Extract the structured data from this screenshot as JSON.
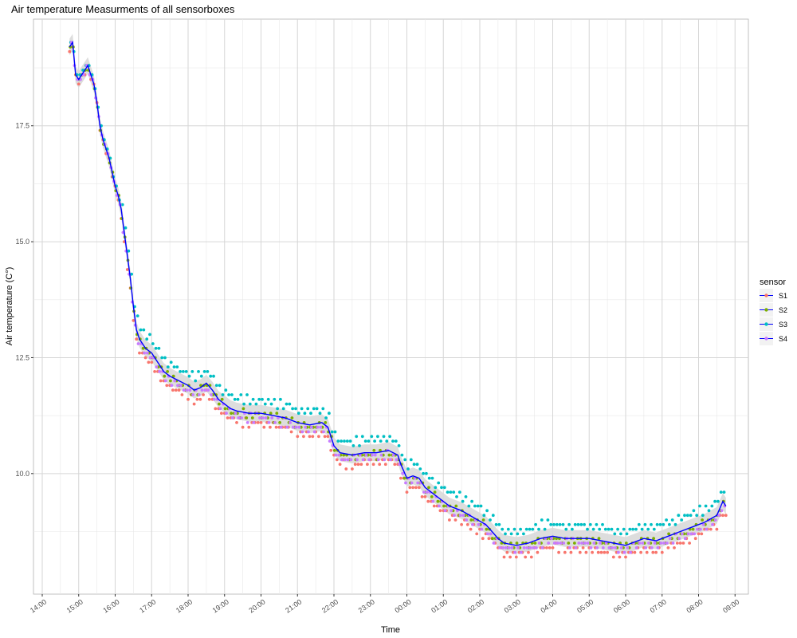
{
  "chart_data": {
    "type": "scatter",
    "title": "Air temperature Measurments of all sensorboxes",
    "xlabel": "Time",
    "ylabel": "Air temperature (C°)",
    "grid": true,
    "xlim": [
      "14:00",
      "09:00"
    ],
    "ylim": [
      7.4,
      19.8
    ],
    "x_ticks": [
      "14:00",
      "15:00",
      "16:00",
      "17:00",
      "18:00",
      "19:00",
      "20:00",
      "21:00",
      "22:00",
      "23:00",
      "00:00",
      "01:00",
      "02:00",
      "03:00",
      "04:00",
      "05:00",
      "06:00",
      "07:00",
      "08:00",
      "09:00"
    ],
    "y_ticks": [
      "10.0",
      "12.5",
      "15.0",
      "17.5"
    ],
    "legend": {
      "title": "sensor",
      "position": "right"
    },
    "series": [
      {
        "name": "S1",
        "color": "#F8766D"
      },
      {
        "name": "S2",
        "color": "#7CAE00"
      },
      {
        "name": "S3",
        "color": "#00BFC4"
      },
      {
        "name": "S4",
        "color": "#C77CFF"
      }
    ],
    "trend": {
      "color": "#0000FF",
      "band_color": "#D9D9D9",
      "points": [
        [
          "14:45",
          19.2
        ],
        [
          "14:50",
          19.3
        ],
        [
          "14:55",
          18.6
        ],
        [
          "15:00",
          18.5
        ],
        [
          "15:05",
          18.6
        ],
        [
          "15:10",
          18.7
        ],
        [
          "15:15",
          18.8
        ],
        [
          "15:20",
          18.6
        ],
        [
          "15:25",
          18.4
        ],
        [
          "15:30",
          18.0
        ],
        [
          "15:35",
          17.5
        ],
        [
          "15:40",
          17.2
        ],
        [
          "15:45",
          17.0
        ],
        [
          "15:50",
          16.8
        ],
        [
          "15:55",
          16.5
        ],
        [
          "16:00",
          16.2
        ],
        [
          "16:05",
          16.0
        ],
        [
          "16:10",
          15.7
        ],
        [
          "16:15",
          15.2
        ],
        [
          "16:20",
          14.7
        ],
        [
          "16:25",
          14.2
        ],
        [
          "16:30",
          13.6
        ],
        [
          "16:35",
          13.1
        ],
        [
          "16:40",
          12.9
        ],
        [
          "16:50",
          12.7
        ],
        [
          "17:00",
          12.6
        ],
        [
          "17:10",
          12.4
        ],
        [
          "17:20",
          12.2
        ],
        [
          "17:30",
          12.1
        ],
        [
          "17:45",
          12.0
        ],
        [
          "18:00",
          11.9
        ],
        [
          "18:10",
          11.8
        ],
        [
          "18:20",
          11.85
        ],
        [
          "18:30",
          11.95
        ],
        [
          "18:40",
          11.8
        ],
        [
          "18:50",
          11.6
        ],
        [
          "19:00",
          11.5
        ],
        [
          "19:10",
          11.4
        ],
        [
          "19:20",
          11.35
        ],
        [
          "19:40",
          11.3
        ],
        [
          "20:00",
          11.3
        ],
        [
          "20:20",
          11.25
        ],
        [
          "20:40",
          11.2
        ],
        [
          "21:00",
          11.1
        ],
        [
          "21:20",
          11.05
        ],
        [
          "21:40",
          11.1
        ],
        [
          "21:50",
          11.0
        ],
        [
          "22:00",
          10.6
        ],
        [
          "22:10",
          10.45
        ],
        [
          "22:30",
          10.4
        ],
        [
          "22:50",
          10.45
        ],
        [
          "23:10",
          10.45
        ],
        [
          "23:30",
          10.5
        ],
        [
          "23:45",
          10.4
        ],
        [
          "23:50",
          10.2
        ],
        [
          "00:00",
          9.9
        ],
        [
          "00:10",
          9.95
        ],
        [
          "00:20",
          9.9
        ],
        [
          "00:30",
          9.7
        ],
        [
          "00:50",
          9.5
        ],
        [
          "01:10",
          9.3
        ],
        [
          "01:30",
          9.2
        ],
        [
          "01:50",
          9.05
        ],
        [
          "02:10",
          8.9
        ],
        [
          "02:20",
          8.75
        ],
        [
          "02:30",
          8.6
        ],
        [
          "02:40",
          8.5
        ],
        [
          "03:00",
          8.45
        ],
        [
          "03:20",
          8.5
        ],
        [
          "03:40",
          8.6
        ],
        [
          "04:00",
          8.65
        ],
        [
          "04:20",
          8.6
        ],
        [
          "04:40",
          8.6
        ],
        [
          "05:00",
          8.6
        ],
        [
          "05:20",
          8.55
        ],
        [
          "05:40",
          8.5
        ],
        [
          "06:00",
          8.45
        ],
        [
          "06:10",
          8.5
        ],
        [
          "06:30",
          8.6
        ],
        [
          "06:50",
          8.55
        ],
        [
          "07:10",
          8.65
        ],
        [
          "07:30",
          8.75
        ],
        [
          "07:50",
          8.85
        ],
        [
          "08:10",
          8.95
        ],
        [
          "08:30",
          9.1
        ],
        [
          "08:40",
          9.4
        ],
        [
          "08:45",
          9.3
        ]
      ]
    }
  }
}
